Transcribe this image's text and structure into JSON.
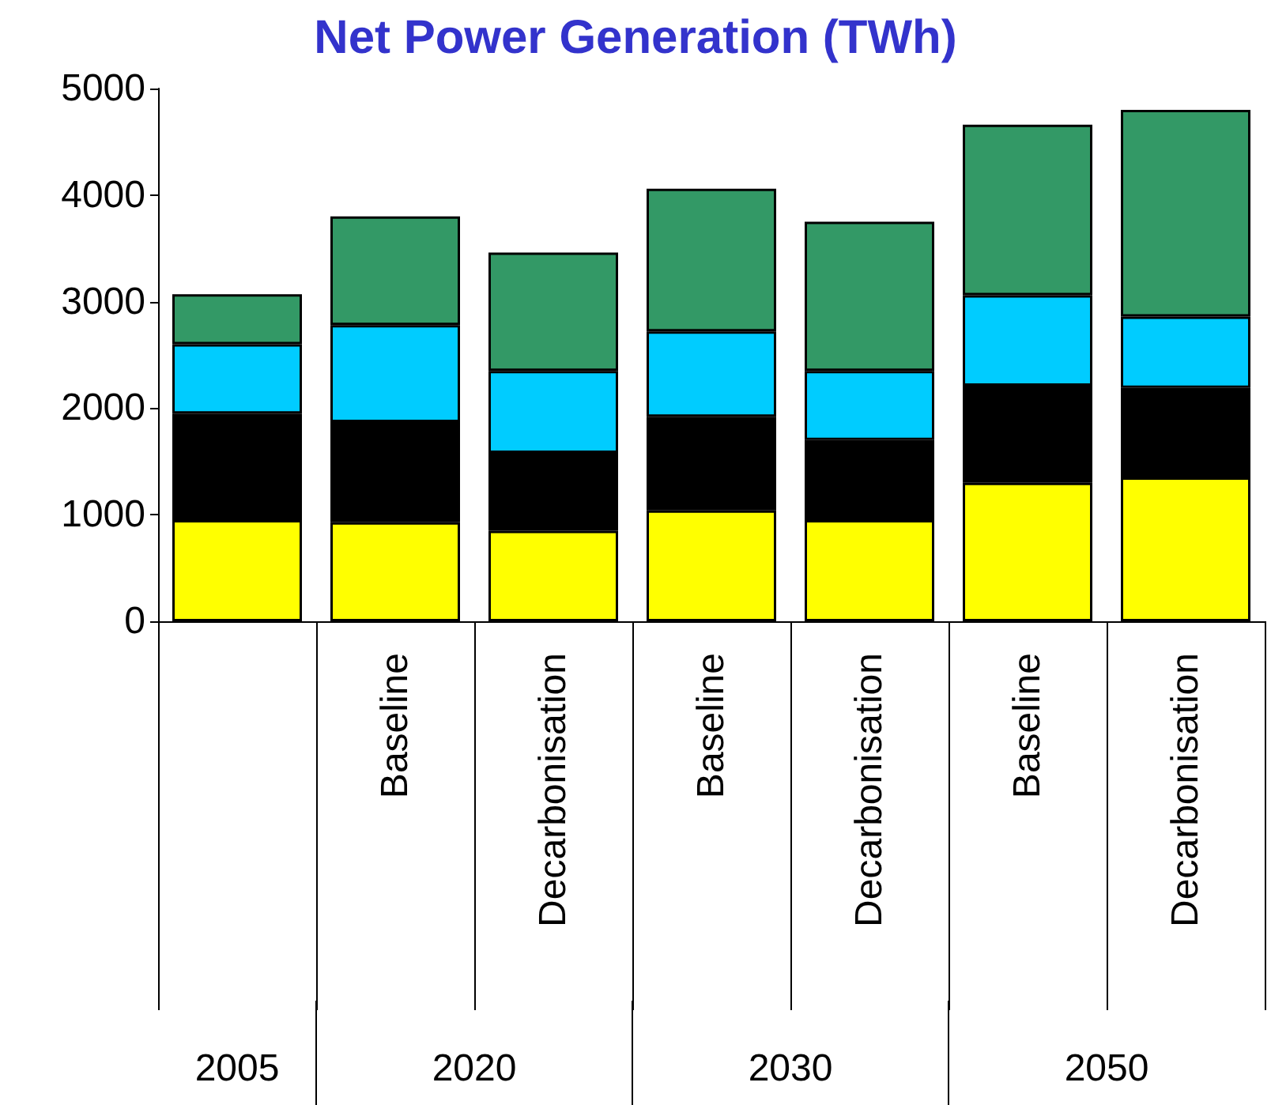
{
  "chart_data": {
    "type": "bar",
    "title": "Net Power Generation (TWh)",
    "stacked": true,
    "categories": [
      null,
      "Baseline",
      "Decarbonisation",
      "Baseline",
      "Decarbonisation",
      "Baseline",
      "Decarbonisation"
    ],
    "series": [
      {
        "color": "#ffff00",
        "values": [
          950,
          930,
          850,
          1040,
          950,
          1300,
          1350
        ]
      },
      {
        "color": "#000000",
        "values": [
          1000,
          940,
          730,
          880,
          750,
          910,
          840
        ]
      },
      {
        "color": "#00ccff",
        "values": [
          650,
          910,
          770,
          800,
          650,
          850,
          670
        ]
      },
      {
        "color": "#339966",
        "values": [
          470,
          1020,
          1110,
          1340,
          1400,
          1600,
          1940
        ]
      }
    ],
    "ylim": [
      0,
      5000
    ],
    "yticks": [
      0,
      1000,
      2000,
      3000,
      4000,
      5000
    ],
    "grid": false,
    "annotations": [
      "2005",
      "2020",
      "2030",
      "2050"
    ]
  }
}
